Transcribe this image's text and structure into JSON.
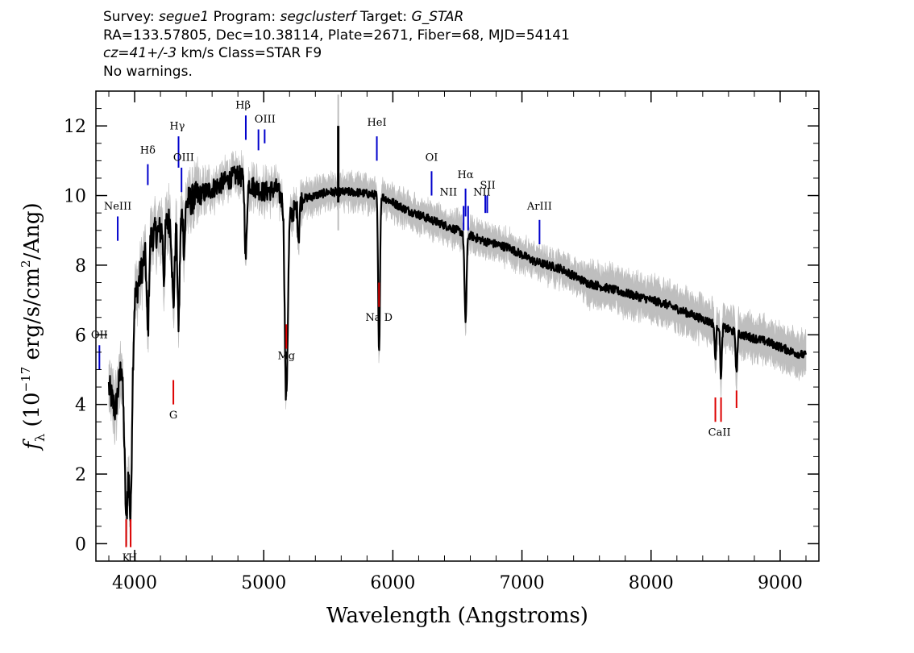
{
  "header": {
    "survey_label": "Survey:",
    "survey": "segue1",
    "program_label": "Program:",
    "program": "segclusterf",
    "target_label": "Target:",
    "target": "G_STAR",
    "line2": "RA=133.57805, Dec=10.38114, Plate=2671, Fiber=68, MJD=54141",
    "cz": "cz=41+/-3",
    "line3_rest": "km/s Class=STAR F9",
    "line4": "No warnings."
  },
  "chart_data": {
    "type": "line",
    "xlabel": "Wavelength (Angstroms)",
    "ylabel_main": "f",
    "ylabel_sub": "λ",
    "ylabel_rest": " (10",
    "ylabel_exp": "−17",
    "ylabel_units": " erg/s/cm",
    "ylabel_exp2": "2",
    "ylabel_end": "/Ang)",
    "xlim": [
      3700,
      9300
    ],
    "ylim": [
      -0.5,
      13.0
    ],
    "xticks": [
      4000,
      5000,
      6000,
      7000,
      8000,
      9000
    ],
    "yticks": [
      0,
      2,
      4,
      6,
      8,
      10,
      12
    ],
    "grid": false,
    "colors": {
      "flux": "#000000",
      "error": "#bebebe",
      "emission": "#0000cc",
      "absorption": "#dd0000"
    },
    "continuum_knots": [
      [
        3800,
        4.5
      ],
      [
        3850,
        3.8
      ],
      [
        3900,
        5.2
      ],
      [
        3935,
        1.5
      ],
      [
        3970,
        3.0
      ],
      [
        4000,
        7.0
      ],
      [
        4050,
        7.8
      ],
      [
        4100,
        8.6
      ],
      [
        4150,
        8.9
      ],
      [
        4200,
        9.0
      ],
      [
        4250,
        9.2
      ],
      [
        4300,
        9.4
      ],
      [
        4350,
        9.3
      ],
      [
        4400,
        9.8
      ],
      [
        4500,
        10.0
      ],
      [
        4600,
        10.2
      ],
      [
        4700,
        10.4
      ],
      [
        4800,
        10.6
      ],
      [
        4900,
        10.3
      ],
      [
        5000,
        10.1
      ],
      [
        5100,
        10.2
      ],
      [
        5200,
        9.4
      ],
      [
        5300,
        9.9
      ],
      [
        5500,
        10.1
      ],
      [
        5700,
        10.1
      ],
      [
        5900,
        10.0
      ],
      [
        6100,
        9.6
      ],
      [
        6300,
        9.3
      ],
      [
        6500,
        9.0
      ],
      [
        6700,
        8.7
      ],
      [
        6900,
        8.5
      ],
      [
        7100,
        8.1
      ],
      [
        7300,
        7.9
      ],
      [
        7500,
        7.5
      ],
      [
        7700,
        7.3
      ],
      [
        7900,
        7.1
      ],
      [
        8100,
        6.9
      ],
      [
        8300,
        6.6
      ],
      [
        8500,
        6.3
      ],
      [
        8700,
        6.0
      ],
      [
        8900,
        5.8
      ],
      [
        9100,
        5.5
      ],
      [
        9200,
        5.4
      ]
    ],
    "absorption_features": [
      [
        3934,
        1.0,
        8
      ],
      [
        3969,
        2.2,
        8
      ],
      [
        4102,
        2.6,
        8
      ],
      [
        4227,
        1.5,
        6
      ],
      [
        4300,
        2.5,
        10
      ],
      [
        4340,
        3.0,
        8
      ],
      [
        4384,
        1.2,
        6
      ],
      [
        4861,
        2.2,
        8
      ],
      [
        5167,
        2.5,
        8
      ],
      [
        5173,
        2.5,
        8
      ],
      [
        5184,
        2.6,
        8
      ],
      [
        5270,
        1.0,
        6
      ],
      [
        5890,
        2.6,
        6
      ],
      [
        5896,
        2.6,
        6
      ],
      [
        6563,
        2.5,
        8
      ],
      [
        8498,
        1.0,
        6
      ],
      [
        8542,
        1.5,
        6
      ],
      [
        8662,
        1.2,
        6
      ]
    ],
    "emission_lines": [
      {
        "label": "OII",
        "x": 3727,
        "y_top": 5.7,
        "y_bot": 5.0
      },
      {
        "label": "NeIII",
        "x": 3869,
        "y_top": 9.4,
        "y_bot": 8.7
      },
      {
        "label": "Hδ",
        "x": 4102,
        "y_top": 10.9,
        "y_bot": 10.3
      },
      {
        "label": "Hγ",
        "x": 4340,
        "y_top": 11.7,
        "y_bot": 10.8
      },
      {
        "label": "OIII",
        "x": 4363,
        "y_top": 10.8,
        "y_bot": 10.1
      },
      {
        "label": "Hβ",
        "x": 4861,
        "y_top": 12.3,
        "y_bot": 11.6
      },
      {
        "label": "OIII",
        "x": 4959,
        "y_top": 11.9,
        "y_bot": 11.3
      },
      {
        "label": "OIII",
        "x": 5007,
        "y_top": 11.9,
        "y_bot": 11.5
      },
      {
        "label": "HeI",
        "x": 5876,
        "y_top": 11.7,
        "y_bot": 11.0
      },
      {
        "label": "OI",
        "x": 6300,
        "y_top": 10.7,
        "y_bot": 10.0
      },
      {
        "label": "NII",
        "x": 6548,
        "y_top": 9.7,
        "y_bot": 9.0
      },
      {
        "label": "Hα",
        "x": 6563,
        "y_top": 10.2,
        "y_bot": 9.4
      },
      {
        "label": "NII",
        "x": 6583,
        "y_top": 9.7,
        "y_bot": 9.0
      },
      {
        "label": "SII",
        "x": 6716,
        "y_top": 10.0,
        "y_bot": 9.5
      },
      {
        "label": "SII",
        "x": 6731,
        "y_top": 10.0,
        "y_bot": 9.5
      },
      {
        "label": "ArIII",
        "x": 7136,
        "y_top": 9.3,
        "y_bot": 8.6
      }
    ],
    "emission_labels": [
      {
        "text": "OII",
        "x": 3727,
        "y": 5.9
      },
      {
        "text": "NeIII",
        "x": 3869,
        "y": 9.6
      },
      {
        "text": "Hδ",
        "x": 4102,
        "y": 11.2
      },
      {
        "text": "Hγ",
        "x": 4330,
        "y": 11.9
      },
      {
        "text": "OIII",
        "x": 4380,
        "y": 11.0
      },
      {
        "text": "Hβ",
        "x": 4840,
        "y": 12.5
      },
      {
        "text": "OIII",
        "x": 5010,
        "y": 12.1
      },
      {
        "text": "HeI",
        "x": 5876,
        "y": 12.0
      },
      {
        "text": "OI",
        "x": 6300,
        "y": 11.0
      },
      {
        "text": "NII",
        "x": 6430,
        "y": 10.0
      },
      {
        "text": "Hα",
        "x": 6563,
        "y": 10.5
      },
      {
        "text": "SII",
        "x": 6735,
        "y": 10.2
      },
      {
        "text": "NII",
        "x": 6690,
        "y": 10.0
      },
      {
        "text": "ArIII",
        "x": 7136,
        "y": 9.6
      }
    ],
    "absorption_lines": [
      {
        "label": "K",
        "x": 3934,
        "y_top": 0.7,
        "y_bot": -0.1
      },
      {
        "label": "H",
        "x": 3969,
        "y_top": 0.7,
        "y_bot": -0.1
      },
      {
        "label": "G",
        "x": 4300,
        "y_top": 4.7,
        "y_bot": 4.0
      },
      {
        "label": "Mg",
        "x": 5175,
        "y_top": 6.3,
        "y_bot": 5.6
      },
      {
        "label": "Na D",
        "x": 5893,
        "y_top": 7.5,
        "y_bot": 6.8
      },
      {
        "label": "CaII",
        "x": 8498,
        "y_top": 4.2,
        "y_bot": 3.5
      },
      {
        "label": "CaII",
        "x": 8542,
        "y_top": 4.2,
        "y_bot": 3.5
      },
      {
        "label": "CaII",
        "x": 8662,
        "y_top": 4.4,
        "y_bot": 3.9
      }
    ],
    "absorption_labels": [
      {
        "text": "K",
        "x": 3934,
        "y": -0.5
      },
      {
        "text": "H",
        "x": 3984,
        "y": -0.5
      },
      {
        "text": "G",
        "x": 4300,
        "y": 3.6
      },
      {
        "text": "Mg",
        "x": 5175,
        "y": 5.3
      },
      {
        "text": "Na D",
        "x": 5893,
        "y": 6.4
      },
      {
        "text": "CaII",
        "x": 8530,
        "y": 3.1
      }
    ]
  }
}
